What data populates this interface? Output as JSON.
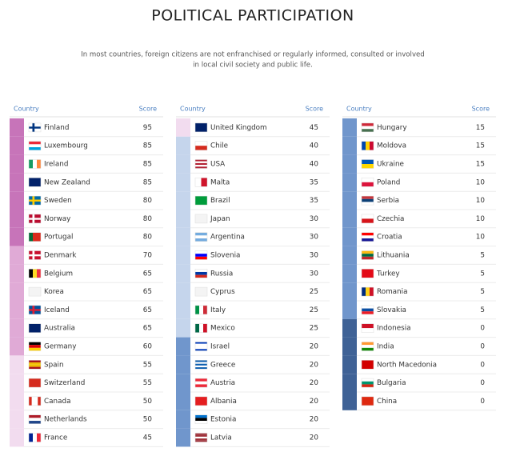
{
  "title": "POLITICAL PARTICIPATION",
  "subtitle": [
    "In most countries, foreign citizens are not enfranchised or regularly informed, consulted or involved",
    "in local civil society and public life."
  ],
  "tables": [
    {
      "header": {
        "country": "Country",
        "score": "Score"
      },
      "rows": [
        {
          "country": "Finland",
          "score": 95,
          "color": "#c774b9"
        },
        {
          "country": "Luxembourg",
          "score": 85,
          "color": "#c774b9"
        },
        {
          "country": "Ireland",
          "score": 85,
          "color": "#c774b9"
        },
        {
          "country": "New Zealand",
          "score": 85,
          "color": "#c774b9"
        },
        {
          "country": "Sweden",
          "score": 80,
          "color": "#c774b9"
        },
        {
          "country": "Norway",
          "score": 80,
          "color": "#c774b9"
        },
        {
          "country": "Portugal",
          "score": 80,
          "color": "#c774b9"
        },
        {
          "country": "Denmark",
          "score": 70,
          "color": "#e0aad6"
        },
        {
          "country": "Belgium",
          "score": 65,
          "color": "#e0aad6"
        },
        {
          "country": "Korea",
          "score": 65,
          "color": "#e0aad6"
        },
        {
          "country": "Iceland",
          "score": 65,
          "color": "#e0aad6"
        },
        {
          "country": "Australia",
          "score": 65,
          "color": "#e0aad6"
        },
        {
          "country": "Germany",
          "score": 60,
          "color": "#e0aad6"
        },
        {
          "country": "Spain",
          "score": 55,
          "color": "#f2dcef"
        },
        {
          "country": "Switzerland",
          "score": 55,
          "color": "#f2dcef"
        },
        {
          "country": "Canada",
          "score": 50,
          "color": "#f2dcef"
        },
        {
          "country": "Netherlands",
          "score": 50,
          "color": "#f2dcef"
        },
        {
          "country": "France",
          "score": 45,
          "color": "#f2dcef"
        }
      ]
    },
    {
      "header": {
        "country": "Country",
        "score": "Score"
      },
      "rows": [
        {
          "country": "United Kingdom",
          "score": 45,
          "color": "#f2dcef"
        },
        {
          "country": "Chile",
          "score": 40,
          "color": "#c5d5ec"
        },
        {
          "country": "USA",
          "score": 40,
          "color": "#c5d5ec"
        },
        {
          "country": "Malta",
          "score": 35,
          "color": "#c5d5ec"
        },
        {
          "country": "Brazil",
          "score": 35,
          "color": "#c5d5ec"
        },
        {
          "country": "Japan",
          "score": 30,
          "color": "#c5d5ec"
        },
        {
          "country": "Argentina",
          "score": 30,
          "color": "#c5d5ec"
        },
        {
          "country": "Slovenia",
          "score": 30,
          "color": "#c5d5ec"
        },
        {
          "country": "Russia",
          "score": 30,
          "color": "#c5d5ec"
        },
        {
          "country": "Cyprus",
          "score": 25,
          "color": "#c5d5ec"
        },
        {
          "country": "Italy",
          "score": 25,
          "color": "#c5d5ec"
        },
        {
          "country": "Mexico",
          "score": 25,
          "color": "#c5d5ec"
        },
        {
          "country": "Israel",
          "score": 20,
          "color": "#7096cc"
        },
        {
          "country": "Greece",
          "score": 20,
          "color": "#7096cc"
        },
        {
          "country": "Austria",
          "score": 20,
          "color": "#7096cc"
        },
        {
          "country": "Albania",
          "score": 20,
          "color": "#7096cc"
        },
        {
          "country": "Estonia",
          "score": 20,
          "color": "#7096cc"
        },
        {
          "country": "Latvia",
          "score": 20,
          "color": "#7096cc"
        }
      ]
    },
    {
      "header": {
        "country": "Country",
        "score": "Score"
      },
      "rows": [
        {
          "country": "Hungary",
          "score": 15,
          "color": "#7096cc"
        },
        {
          "country": "Moldova",
          "score": 15,
          "color": "#7096cc"
        },
        {
          "country": "Ukraine",
          "score": 15,
          "color": "#7096cc"
        },
        {
          "country": "Poland",
          "score": 10,
          "color": "#7096cc"
        },
        {
          "country": "Serbia",
          "score": 10,
          "color": "#7096cc"
        },
        {
          "country": "Czechia",
          "score": 10,
          "color": "#7096cc"
        },
        {
          "country": "Croatia",
          "score": 10,
          "color": "#7096cc"
        },
        {
          "country": "Lithuania",
          "score": 5,
          "color": "#7096cc"
        },
        {
          "country": "Turkey",
          "score": 5,
          "color": "#7096cc"
        },
        {
          "country": "Romania",
          "score": 5,
          "color": "#7096cc"
        },
        {
          "country": "Slovakia",
          "score": 5,
          "color": "#7096cc"
        },
        {
          "country": "Indonesia",
          "score": 0,
          "color": "#3f6296"
        },
        {
          "country": "India",
          "score": 0,
          "color": "#3f6296"
        },
        {
          "country": "North Macedonia",
          "score": 0,
          "color": "#3f6296"
        },
        {
          "country": "Bulgaria",
          "score": 0,
          "color": "#3f6296"
        },
        {
          "country": "China",
          "score": 0,
          "color": "#3f6296"
        }
      ]
    }
  ]
}
